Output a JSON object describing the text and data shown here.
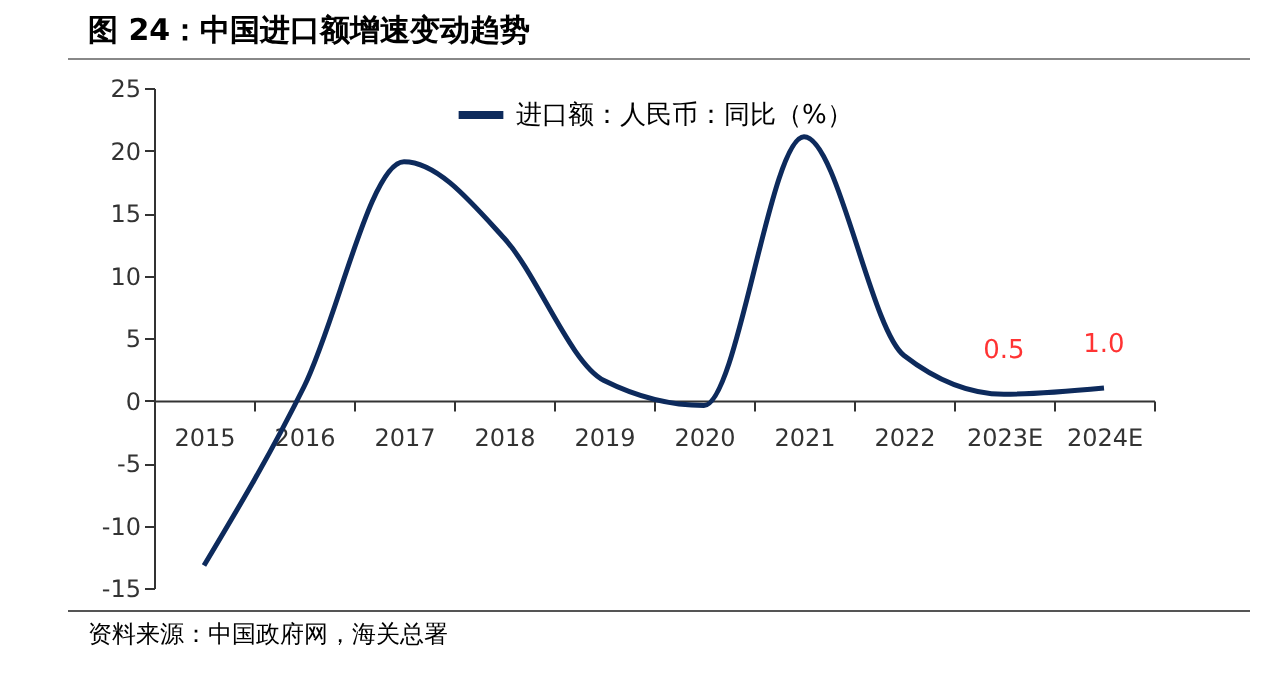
{
  "chart_data": {
    "type": "line",
    "title": "图 24：中国进口额增速变动趋势",
    "categories": [
      "2015",
      "2016",
      "2017",
      "2018",
      "2019",
      "2020",
      "2021",
      "2022",
      "2023E",
      "2024E"
    ],
    "series": [
      {
        "name": "进口额：人民币：同比（%）",
        "color": "#0d2a5c",
        "values": [
          -13.2,
          1.1,
          19.1,
          13,
          1.6,
          -0.4,
          21.1,
          3.6,
          0.5,
          1.0
        ],
        "value_labels": [
          null,
          null,
          null,
          null,
          null,
          null,
          null,
          null,
          "0.5",
          "1.0"
        ]
      }
    ],
    "ylim": [
      -15,
      25
    ],
    "yticks": [
      -15,
      -10,
      -5,
      0,
      5,
      10,
      15,
      20,
      25
    ],
    "grid": false,
    "legend": "top",
    "marker": "none",
    "line_style": "solid",
    "annotations": [
      "资料来源：中国政府网，海关总署"
    ]
  }
}
